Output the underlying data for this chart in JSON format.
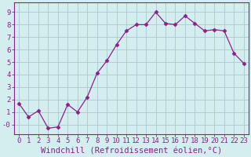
{
  "x": [
    0,
    1,
    2,
    3,
    4,
    5,
    6,
    7,
    8,
    9,
    10,
    11,
    12,
    13,
    14,
    15,
    16,
    17,
    18,
    19,
    20,
    21,
    22,
    23
  ],
  "y": [
    1.7,
    0.6,
    1.1,
    -0.3,
    -0.2,
    1.6,
    1.0,
    2.2,
    4.1,
    5.1,
    6.4,
    7.5,
    8.0,
    8.0,
    9.0,
    8.1,
    8.0,
    8.7,
    8.1,
    7.5,
    7.6,
    7.5,
    5.7,
    4.9
  ],
  "line_color": "#882288",
  "marker": "D",
  "marker_size": 2.5,
  "bg_color": "#d4eef0",
  "grid_color": "#a8c8d0",
  "xlabel": "Windchill (Refroidissement éolien,°C)",
  "ylim": [
    -0.8,
    9.8
  ],
  "xlim": [
    -0.5,
    23.5
  ],
  "yticks": [
    0,
    1,
    2,
    3,
    4,
    5,
    6,
    7,
    8,
    9
  ],
  "ytick_labels": [
    "-0",
    "1",
    "2",
    "3",
    "4",
    "5",
    "6",
    "7",
    "8",
    "9"
  ],
  "xtick_labels": [
    "0",
    "1",
    "2",
    "3",
    "4",
    "5",
    "6",
    "7",
    "8",
    "9",
    "10",
    "11",
    "12",
    "13",
    "14",
    "15",
    "16",
    "17",
    "18",
    "19",
    "20",
    "21",
    "22",
    "23"
  ],
  "xlabel_color": "#882288",
  "tick_color": "#882288",
  "spine_color": "#882288",
  "tick_fontsize": 6.5,
  "xlabel_fontsize": 7.5
}
